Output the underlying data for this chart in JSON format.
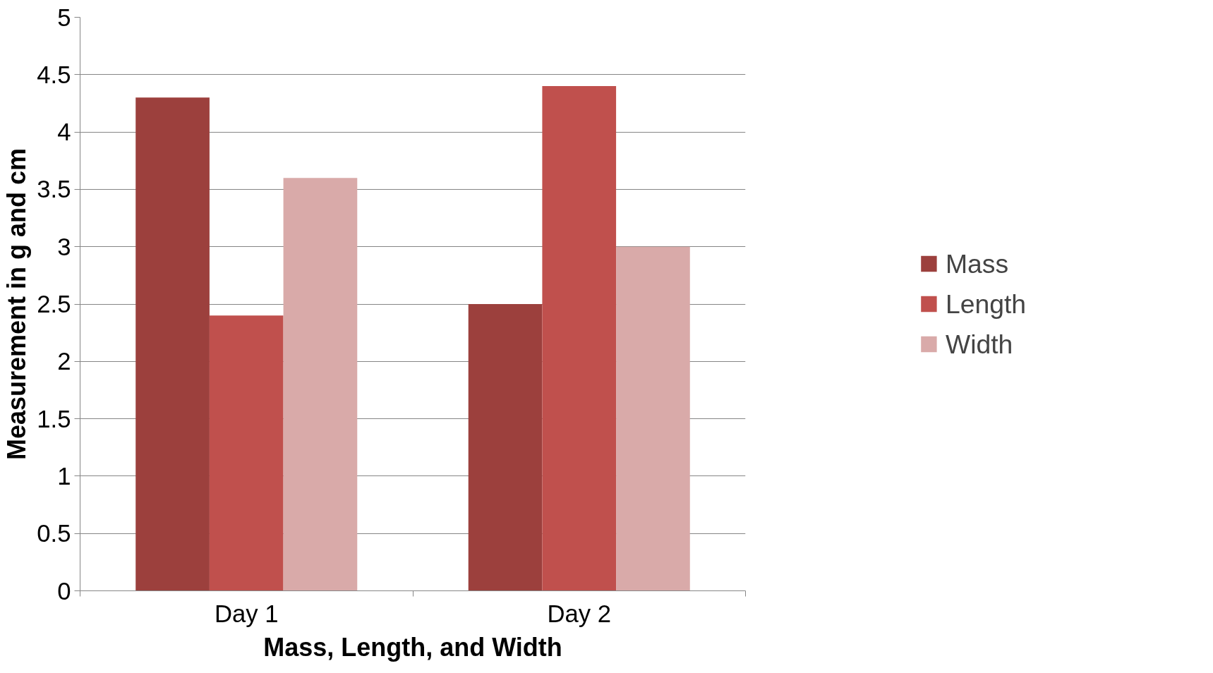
{
  "chart_data": {
    "type": "bar",
    "xlabel": "Mass, Length, and Width",
    "ylabel": "Measurement in g and cm",
    "categories": [
      "Day 1",
      "Day 2"
    ],
    "series": [
      {
        "name": "Mass",
        "color": "#9c403d",
        "values": [
          4.3,
          2.5
        ]
      },
      {
        "name": "Length",
        "color": "#c0504d",
        "values": [
          2.4,
          4.4
        ]
      },
      {
        "name": "Width",
        "color": "#d9aaa9",
        "values": [
          3.6,
          3.0
        ]
      }
    ],
    "ylim": [
      0,
      5
    ],
    "yticks": [
      0,
      0.5,
      1,
      1.5,
      2,
      2.5,
      3,
      3.5,
      4,
      4.5,
      5
    ],
    "grid": "y",
    "legend": "right"
  }
}
